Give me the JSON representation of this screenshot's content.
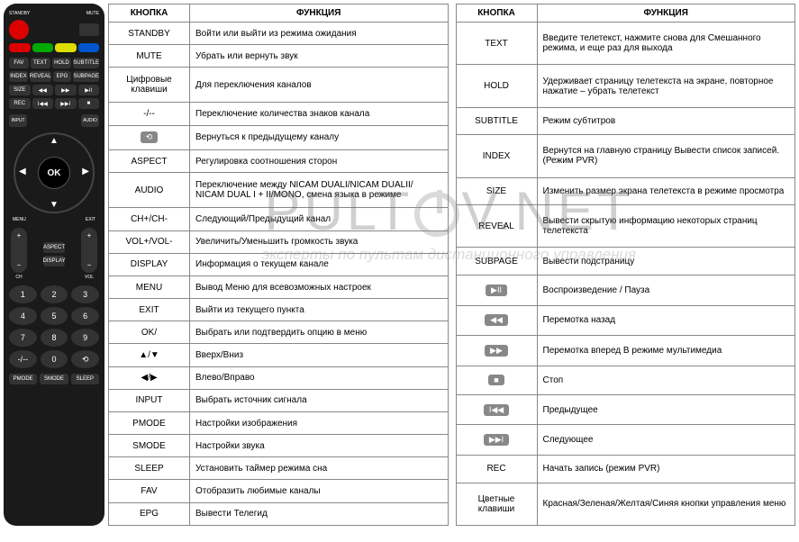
{
  "remote": {
    "standby_lbl": "STANDBY",
    "mute_lbl": "MUTE",
    "row1": [
      "FAV",
      "TEXT",
      "HOLD",
      "SUBTITLE"
    ],
    "row2": [
      "INDEX",
      "REVEAL",
      "EPG",
      "SUBPAGE"
    ],
    "row3": [
      "SIZE",
      "◀◀",
      "▶▶",
      "▶II"
    ],
    "row4": [
      "REC",
      "I◀◀",
      "▶▶I",
      "■"
    ],
    "input": "INPUT",
    "audio": "AUDIO",
    "ok": "OK",
    "menu": "MENU",
    "exit": "EXIT",
    "aspect": "ASPECT",
    "display": "DISPLAY",
    "ch": "CH",
    "vol": "VOL",
    "nums": [
      "1",
      "2",
      "3",
      "4",
      "5",
      "6",
      "7",
      "8",
      "9",
      "-/--",
      "0",
      "⟲"
    ],
    "bottom": [
      "PMODE",
      "SMODE",
      "SLEEP"
    ]
  },
  "table1": {
    "h1": "КНОПКА",
    "h2": "ФУНКЦИЯ",
    "rows": [
      {
        "k": "STANDBY",
        "f": "Войти или выйти из режима ожидания"
      },
      {
        "k": "MUTE",
        "f": "Убрать или вернуть звук"
      },
      {
        "k": "Цифровые клавиши",
        "f": "Для переключения каналов"
      },
      {
        "k": "-/--",
        "f": "Переключение количества знаков канала"
      },
      {
        "k": "⟲",
        "f": "Вернуться к предыдущему каналу",
        "icon": true
      },
      {
        "k": "ASPECT",
        "f": "Регулировка соотношения сторон"
      },
      {
        "k": "AUDIO",
        "f": "Переключение между NICAM DUALI/NICAM DUALII/ NICAM DUAL I + II/MONO, смена языка в режиме"
      },
      {
        "k": "CH+/CH-",
        "f": "Следующий/Предыдущий канал"
      },
      {
        "k": "VOL+/VOL-",
        "f": "Увеличить/Уменьшить громкость звука"
      },
      {
        "k": "DISPLAY",
        "f": "Информация о текущем канале"
      },
      {
        "k": "MENU",
        "f": "Вывод Меню для всевозможных настроек"
      },
      {
        "k": "EXIT",
        "f": "Выйти из текущего пункта"
      },
      {
        "k": "OK/",
        "f": "Выбрать или подтвердить опцию в меню"
      },
      {
        "k": "▲/▼",
        "f": "Вверх/Вниз"
      },
      {
        "k": "◀/▶",
        "f": "Влево/Вправо"
      },
      {
        "k": "INPUT",
        "f": "Выбрать источник сигнала"
      },
      {
        "k": "PMODE",
        "f": "Настройки изображения"
      },
      {
        "k": "SMODE",
        "f": "Настройки звука"
      },
      {
        "k": "SLEEP",
        "f": "Установить таймер режима сна"
      },
      {
        "k": "FAV",
        "f": "Отобразить любимые каналы"
      },
      {
        "k": "EPG",
        "f": "Вывести Телегид"
      }
    ]
  },
  "table2": {
    "h1": "КНОПКА",
    "h2": "ФУНКЦИЯ",
    "rows": [
      {
        "k": "TEXT",
        "f": "Введите телетекст, нажмите снова для Смешанного режима, и еще раз для выхода"
      },
      {
        "k": "HOLD",
        "f": "Удерживает страницу телетекста на экране, повторное нажатие – убрать телетекст"
      },
      {
        "k": "SUBTITLE",
        "f": "Режим субтитров"
      },
      {
        "k": "INDEX",
        "f": "Вернутся на главную страницу Вывести список записей. (Режим PVR)"
      },
      {
        "k": "SIZE",
        "f": "Изменить размер экрана телетекста в режиме просмотра"
      },
      {
        "k": "REVEAL",
        "f": "Вывести скрытую информацию некоторых страниц телетекста"
      },
      {
        "k": "SUBPAGE",
        "f": "Вывести подстраницу"
      },
      {
        "k": "▶II",
        "f": "Воспроизведение / Пауза",
        "icon": true
      },
      {
        "k": "◀◀",
        "f": "Перемотка назад",
        "icon": true
      },
      {
        "k": "▶▶",
        "f": "Перемотка вперед В режиме мультимедиа",
        "icon": true
      },
      {
        "k": "■",
        "f": "Стоп",
        "icon": true
      },
      {
        "k": "I◀◀",
        "f": "Предыдущее",
        "icon": true
      },
      {
        "k": "▶▶I",
        "f": "Следующее",
        "icon": true
      },
      {
        "k": "REC",
        "f": "Начать запись (режим PVR)"
      },
      {
        "k": "Цветные клавиши",
        "f": "Красная/Зеленая/Желтая/Синяя кнопки управления меню"
      }
    ]
  },
  "watermark": {
    "main_left": "PULT",
    "main_right": "V.NET",
    "sub": "эксперты по пультам дистанционного управления"
  }
}
